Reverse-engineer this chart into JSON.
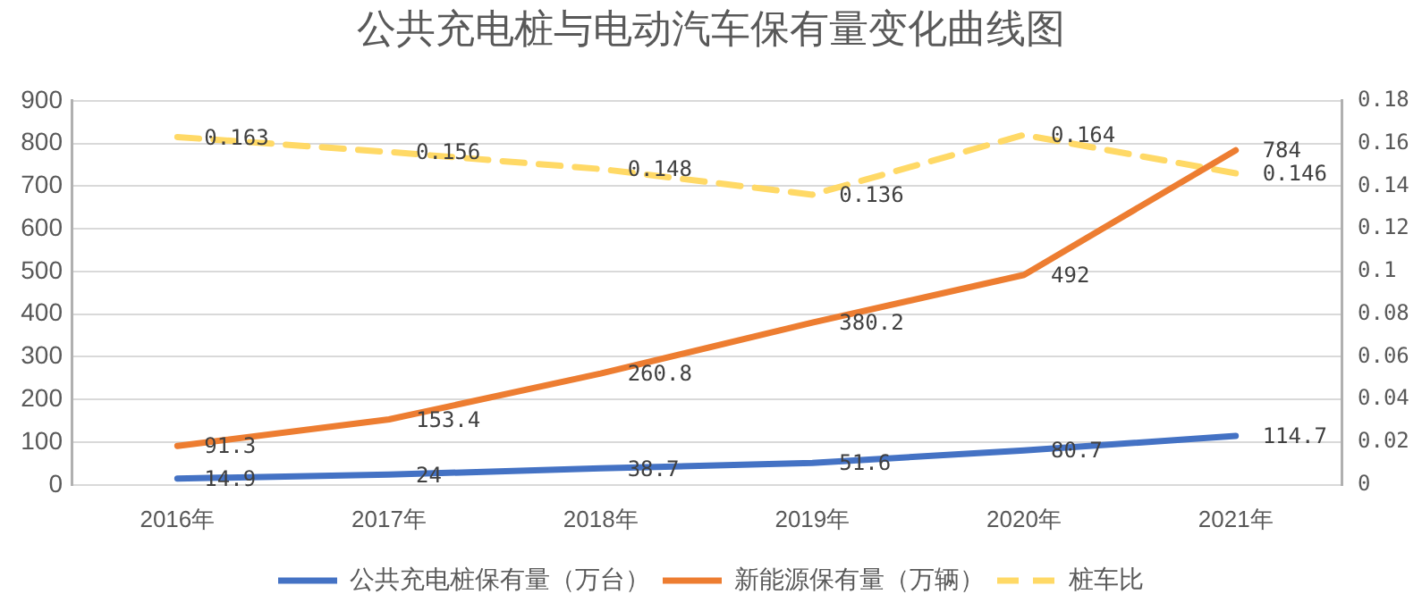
{
  "chart_data": {
    "type": "line",
    "title": "公共充电桩与电动汽车保有量变化曲线图",
    "categories": [
      "2016年",
      "2017年",
      "2018年",
      "2019年",
      "2020年",
      "2021年"
    ],
    "series": [
      {
        "name": "公共充电桩保有量（万台）",
        "color": "#4472c4",
        "values": [
          14.9,
          24,
          38.7,
          51.6,
          80.7,
          114.7
        ]
      },
      {
        "name": "新能源保有量（万辆）",
        "color": "#ed7d31",
        "values": [
          91.3,
          153.4,
          260.8,
          380.2,
          492,
          784
        ]
      },
      {
        "name": "桩车比",
        "color": "#ffd966",
        "axis": "y2",
        "line_style": "dashed",
        "values": [
          0.163,
          0.156,
          0.148,
          0.136,
          0.164,
          0.146
        ]
      }
    ],
    "ylim": [
      0,
      900
    ],
    "yticks": [
      0,
      100,
      200,
      300,
      400,
      500,
      600,
      700,
      800,
      900
    ],
    "y2lim": [
      0,
      0.18
    ],
    "y2ticks": [
      0,
      0.02,
      0.04,
      0.06,
      0.08,
      0.1,
      0.12,
      0.14,
      0.16,
      0.18
    ],
    "grid": "y",
    "legend": "bottom",
    "data_labels": true,
    "marker": "none",
    "line_style": "solid"
  }
}
